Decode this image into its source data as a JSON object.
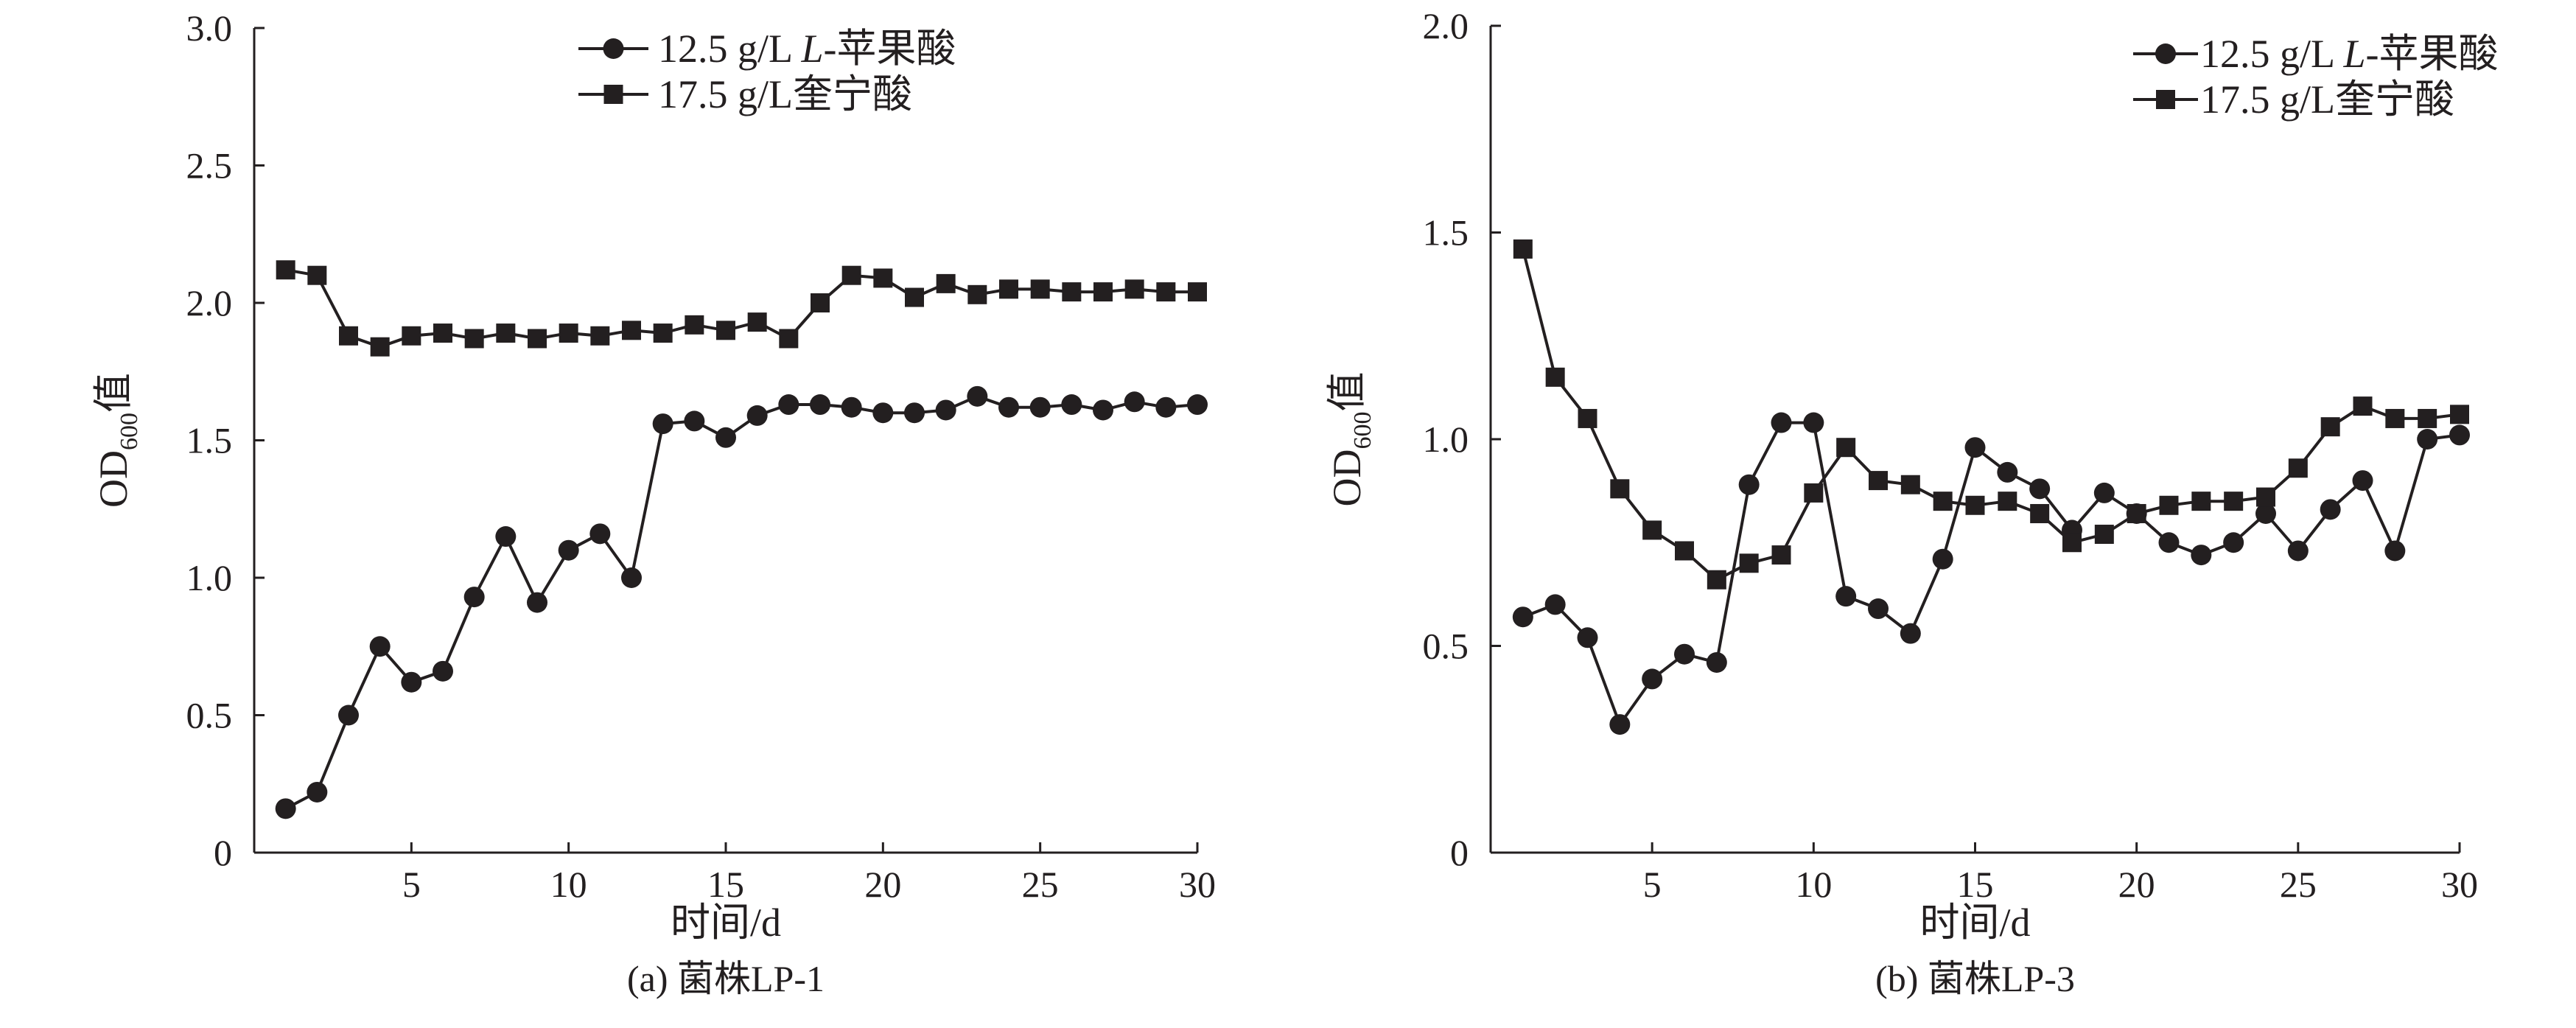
{
  "chart_data": [
    {
      "type": "line",
      "caption": "(a) 菌株LP-1",
      "xlabel": "时间/d",
      "ylabel_main": "OD",
      "ylabel_sub": "600",
      "ylabel_tail": "值",
      "xlim": [
        0,
        30
      ],
      "ylim": [
        0,
        3.0
      ],
      "xticks": [
        5,
        10,
        15,
        20,
        25,
        30
      ],
      "xtick_labels": [
        "5",
        "10",
        "15",
        "20",
        "25",
        "30"
      ],
      "yticks": [
        0,
        0.5,
        1.0,
        1.5,
        2.0,
        2.5,
        3.0
      ],
      "ytick_labels": [
        "0",
        "0.5",
        "1.0",
        "1.5",
        "2.0",
        "2.5",
        "3.0"
      ],
      "legend_position": "top-center",
      "x": [
        1,
        2,
        3,
        4,
        5,
        6,
        7,
        8,
        9,
        10,
        11,
        12,
        13,
        14,
        15,
        16,
        17,
        18,
        19,
        20,
        21,
        22,
        23,
        24,
        25,
        26,
        27,
        28,
        29,
        30
      ],
      "series": [
        {
          "name": "12.5 g/L L-苹果酸",
          "legend_prefix": "12.5 g/L ",
          "legend_italic": "L",
          "legend_suffix": "-苹果酸",
          "marker": "circle",
          "values": [
            0.16,
            0.22,
            0.5,
            0.75,
            0.62,
            0.66,
            0.93,
            1.15,
            0.91,
            1.1,
            1.16,
            1.0,
            1.56,
            1.57,
            1.51,
            1.59,
            1.63,
            1.63,
            1.62,
            1.6,
            1.6,
            1.61,
            1.66,
            1.62,
            1.62,
            1.63,
            1.61,
            1.64,
            1.62,
            1.63
          ]
        },
        {
          "name": "17.5 g/L奎宁酸",
          "legend_prefix": "17.5 g/L奎宁酸",
          "legend_italic": "",
          "legend_suffix": "",
          "marker": "square",
          "values": [
            2.12,
            2.1,
            1.88,
            1.84,
            1.88,
            1.89,
            1.87,
            1.89,
            1.87,
            1.89,
            1.88,
            1.9,
            1.89,
            1.92,
            1.9,
            1.93,
            1.87,
            2.0,
            2.1,
            2.09,
            2.02,
            2.07,
            2.03,
            2.05,
            2.05,
            2.04,
            2.04,
            2.05,
            2.04,
            2.04
          ]
        }
      ]
    },
    {
      "type": "line",
      "caption": "(b) 菌株LP-3",
      "xlabel": "时间/d",
      "ylabel_main": "OD",
      "ylabel_sub": "600",
      "ylabel_tail": "值",
      "xlim": [
        0,
        30
      ],
      "ylim": [
        0,
        2.0
      ],
      "xticks": [
        5,
        10,
        15,
        20,
        25,
        30
      ],
      "xtick_labels": [
        "5",
        "10",
        "15",
        "20",
        "25",
        "30"
      ],
      "yticks": [
        0,
        0.5,
        1.0,
        1.5,
        2.0
      ],
      "ytick_labels": [
        "0",
        "0.5",
        "1.0",
        "1.5",
        "2.0"
      ],
      "legend_position": "top-right",
      "x": [
        1,
        2,
        3,
        4,
        5,
        6,
        7,
        8,
        9,
        10,
        11,
        12,
        13,
        14,
        15,
        16,
        17,
        18,
        19,
        20,
        21,
        22,
        23,
        24,
        25,
        26,
        27,
        28,
        29,
        30
      ],
      "series": [
        {
          "name": "12.5 g/L L-苹果酸",
          "legend_prefix": "12.5 g/L ",
          "legend_italic": "L",
          "legend_suffix": "-苹果酸",
          "marker": "circle",
          "values": [
            0.57,
            0.6,
            0.52,
            0.31,
            0.42,
            0.48,
            0.46,
            0.89,
            1.04,
            1.04,
            0.62,
            0.59,
            0.53,
            0.71,
            0.98,
            0.92,
            0.88,
            0.78,
            0.87,
            0.82,
            0.75,
            0.72,
            0.75,
            0.82,
            0.73,
            0.83,
            0.9,
            0.73,
            1.0,
            1.01
          ]
        },
        {
          "name": "17.5 g/L奎宁酸",
          "legend_prefix": "17.5 g/L奎宁酸",
          "legend_italic": "",
          "legend_suffix": "",
          "marker": "square",
          "values": [
            1.46,
            1.15,
            1.05,
            0.88,
            0.78,
            0.73,
            0.66,
            0.7,
            0.72,
            0.87,
            0.98,
            0.9,
            0.89,
            0.85,
            0.84,
            0.85,
            0.82,
            0.75,
            0.77,
            0.82,
            0.84,
            0.85,
            0.85,
            0.86,
            0.93,
            1.03,
            1.08,
            1.05,
            1.05,
            1.06
          ]
        }
      ]
    }
  ]
}
